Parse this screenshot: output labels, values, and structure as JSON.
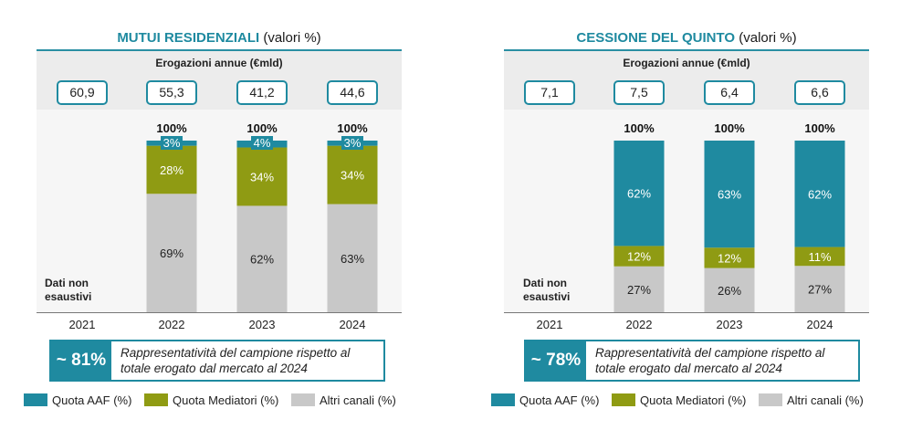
{
  "panels": [
    {
      "title_bold": "MUTUI RESIDENZIALI",
      "title_rest": " (valori %)",
      "annual_label": "Erogazioni annue (€mld)",
      "note": [
        "Dati non",
        "esaustivi"
      ],
      "callout_pct": "~ 81%",
      "callout_text": [
        "Rappresentatività del campione rispetto al",
        "totale erogato dal mercato al 2024"
      ]
    },
    {
      "title_bold": "CESSIONE DEL QUINTO",
      "title_rest": " (valori %)",
      "annual_label": "Erogazioni annue (€mld)",
      "note": [
        "Dati non",
        "esaustivi"
      ],
      "callout_pct": "~ 78%",
      "callout_text": [
        "Rappresentatività del campione rispetto al",
        "totale erogato dal mercato al 2024"
      ]
    }
  ],
  "legend": [
    "Quota AAF (%)",
    "Quota Mediatori (%)",
    "Altri canali (%)"
  ],
  "colors": {
    "aaf": "#1f8aa0",
    "mediatori": "#8f9b13",
    "altri": "#c8c8c8",
    "accent": "#1f8aa0"
  },
  "chart_data": [
    {
      "type": "bar",
      "stacked": true,
      "title": "MUTUI RESIDENZIALI (valori %)",
      "categories": [
        "2021",
        "2022",
        "2023",
        "2024"
      ],
      "annual_values": [
        "60,9",
        "55,3",
        "41,2",
        "44,6"
      ],
      "totals": [
        null,
        "100%",
        "100%",
        "100%"
      ],
      "series": [
        {
          "name": "Altri canali (%)",
          "values": [
            null,
            69,
            62,
            63
          ]
        },
        {
          "name": "Quota Mediatori (%)",
          "values": [
            null,
            28,
            34,
            34
          ]
        },
        {
          "name": "Quota AAF (%)",
          "values": [
            null,
            3,
            4,
            3
          ]
        }
      ],
      "ylim": [
        0,
        100
      ]
    },
    {
      "type": "bar",
      "stacked": true,
      "title": "CESSIONE DEL QUINTO (valori %)",
      "categories": [
        "2021",
        "2022",
        "2023",
        "2024"
      ],
      "annual_values": [
        "7,1",
        "7,5",
        "6,4",
        "6,6"
      ],
      "totals": [
        null,
        "100%",
        "100%",
        "100%"
      ],
      "series": [
        {
          "name": "Altri canali (%)",
          "values": [
            null,
            27,
            26,
            27
          ]
        },
        {
          "name": "Quota Mediatori (%)",
          "values": [
            null,
            12,
            12,
            11
          ]
        },
        {
          "name": "Quota AAF (%)",
          "values": [
            null,
            62,
            63,
            62
          ]
        }
      ],
      "ylim": [
        0,
        100
      ]
    }
  ]
}
